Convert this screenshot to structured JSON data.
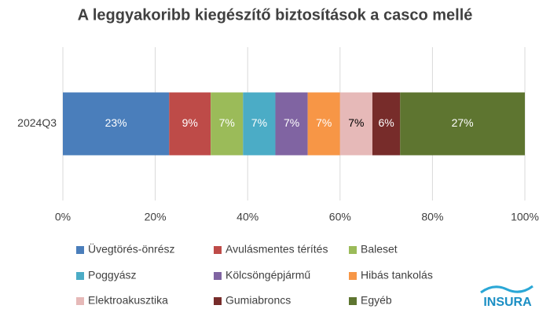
{
  "chart_data": {
    "type": "bar",
    "orientation": "horizontal",
    "stacked": true,
    "title": "A leggyakoribb kiegészítő biztosítások a casco mellé",
    "categories": [
      "2024Q3"
    ],
    "series": [
      {
        "name": "Üvegtörés-önrész",
        "color": "#4a7ebb",
        "values": [
          23
        ],
        "value_labels": [
          "23%"
        ]
      },
      {
        "name": "Avulásmentes térítés",
        "color": "#be4b48",
        "values": [
          9
        ],
        "value_labels": [
          "9%"
        ]
      },
      {
        "name": "Baleset",
        "color": "#9bbb59",
        "values": [
          7
        ],
        "value_labels": [
          "7%"
        ]
      },
      {
        "name": "Poggyász",
        "color": "#4bacc6",
        "values": [
          7
        ],
        "value_labels": [
          "7%"
        ]
      },
      {
        "name": "Kölcsöngépjármű",
        "color": "#8064a2",
        "values": [
          7
        ],
        "value_labels": [
          "7%"
        ]
      },
      {
        "name": "Hibás tankolás",
        "color": "#f79646",
        "values": [
          7
        ],
        "value_labels": [
          "7%"
        ]
      },
      {
        "name": "Elektroakusztika",
        "color": "#e6b9b8",
        "values": [
          7
        ],
        "value_labels": [
          "7%"
        ]
      },
      {
        "name": "Gumiabroncs",
        "color": "#772c2a",
        "values": [
          6
        ],
        "value_labels": [
          "6%"
        ]
      },
      {
        "name": "Egyéb",
        "color": "#5e7530",
        "values": [
          27
        ],
        "value_labels": [
          "27%"
        ]
      }
    ],
    "xlim": [
      0,
      100
    ],
    "xticks": [
      {
        "value": 0,
        "label": "0%"
      },
      {
        "value": 20,
        "label": "20%"
      },
      {
        "value": 40,
        "label": "40%"
      },
      {
        "value": 60,
        "label": "60%"
      },
      {
        "value": 80,
        "label": "80%"
      },
      {
        "value": 100,
        "label": "100%"
      }
    ],
    "grid": true,
    "legend": "bottom"
  },
  "logo": "INSURA"
}
